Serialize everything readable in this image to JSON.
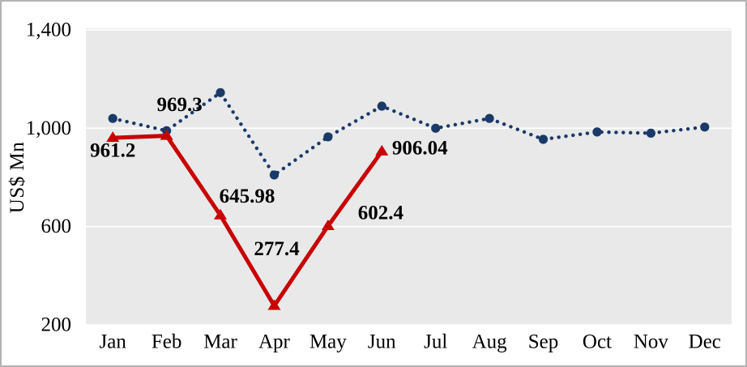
{
  "chart_data": {
    "type": "line",
    "title": "",
    "ylabel": "US$ Mn",
    "xlabel": "",
    "categories": [
      "Jan",
      "Feb",
      "Mar",
      "Apr",
      "May",
      "Jun",
      "Jul",
      "Aug",
      "Sep",
      "Oct",
      "Nov",
      "Dec"
    ],
    "series": [
      {
        "name": "dotted-navy-series",
        "line_style": "dotted",
        "marker": "circle",
        "color": "#1a3a68",
        "values": [
          1040,
          990,
          1145,
          810,
          965,
          1090,
          1000,
          1040,
          955,
          985,
          980,
          1005
        ]
      },
      {
        "name": "solid-red-series",
        "line_style": "solid",
        "marker": "triangle-up",
        "color": "#c80000",
        "values": [
          961.2,
          969.3,
          645.98,
          277.4,
          602.4,
          906.04
        ],
        "data_labels": [
          "961.2",
          "969.3",
          "645.98",
          "277.4",
          "602.4",
          "906.04"
        ]
      }
    ],
    "ylim": [
      200,
      1400
    ],
    "yticks": [
      {
        "value": 1400,
        "label": "1,400"
      },
      {
        "value": 1000,
        "label": "1,000"
      },
      {
        "value": 600,
        "label": "600"
      },
      {
        "value": 200,
        "label": "200"
      }
    ],
    "grid": true,
    "legend_position": "none",
    "plot_background": "#e9e9e9",
    "gridline_color": "#ffffff",
    "text_color": "#000000"
  }
}
